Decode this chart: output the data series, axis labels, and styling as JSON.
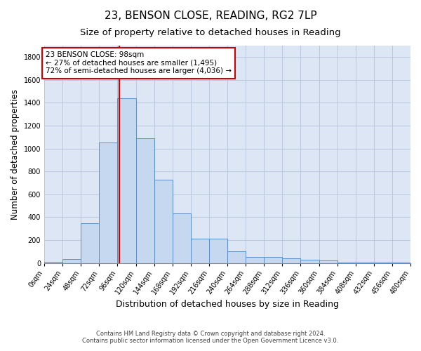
{
  "title": "23, BENSON CLOSE, READING, RG2 7LP",
  "subtitle": "Size of property relative to detached houses in Reading",
  "xlabel": "Distribution of detached houses by size in Reading",
  "ylabel": "Number of detached properties",
  "footer_line1": "Contains HM Land Registry data © Crown copyright and database right 2024.",
  "footer_line2": "Contains public sector information licensed under the Open Government Licence v3.0.",
  "bin_edges": [
    0,
    24,
    48,
    72,
    96,
    120,
    144,
    168,
    192,
    216,
    240,
    264,
    288,
    312,
    336,
    360,
    384,
    408,
    432,
    456,
    480
  ],
  "bar_heights": [
    10,
    35,
    350,
    1055,
    1440,
    1090,
    725,
    430,
    215,
    215,
    100,
    50,
    50,
    40,
    30,
    20,
    5,
    5,
    3,
    3
  ],
  "bar_color": "#c5d8f0",
  "bar_edge_color": "#5b8ec9",
  "property_size": 98,
  "vline_color": "#cc0000",
  "annotation_title": "23 BENSON CLOSE: 98sqm",
  "annotation_line1": "← 27% of detached houses are smaller (1,495)",
  "annotation_line2": "72% of semi-detached houses are larger (4,036) →",
  "annotation_box_color": "#cc0000",
  "ylim": [
    0,
    1900
  ],
  "yticks": [
    0,
    200,
    400,
    600,
    800,
    1000,
    1200,
    1400,
    1600,
    1800
  ],
  "background_color": "#ffffff",
  "plot_bg_color": "#dce6f5",
  "grid_color": "#b8c8dc",
  "title_fontsize": 11,
  "subtitle_fontsize": 9.5,
  "tick_label_fontsize": 7,
  "xlabel_fontsize": 9,
  "ylabel_fontsize": 8.5,
  "annotation_fontsize": 7.5
}
